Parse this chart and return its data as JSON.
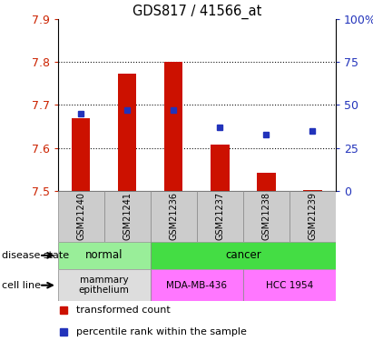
{
  "title": "GDS817 / 41566_at",
  "samples": [
    "GSM21240",
    "GSM21241",
    "GSM21236",
    "GSM21237",
    "GSM21238",
    "GSM21239"
  ],
  "red_values": [
    7.668,
    7.773,
    7.8,
    7.608,
    7.543,
    7.502
  ],
  "blue_percentile": [
    45,
    47,
    47,
    37,
    33,
    35
  ],
  "ymin": 7.5,
  "ymax": 7.9,
  "yticks": [
    7.5,
    7.6,
    7.7,
    7.8,
    7.9
  ],
  "right_yticks": [
    0,
    25,
    50,
    75,
    100
  ],
  "right_ytick_labels": [
    "0",
    "25",
    "50",
    "75",
    "100%"
  ],
  "bar_color": "#cc1100",
  "blue_color": "#2233bb",
  "disease_state_colors": [
    "#99ee99",
    "#44dd44"
  ],
  "cell_line_colors": [
    "#dddddd",
    "#ff77ff",
    "#ff77ff"
  ],
  "tick_row_color": "#cccccc",
  "grid_color": "#111111",
  "left_tick_color": "#cc2200",
  "right_tick_color": "#2233bb",
  "bar_width": 0.4
}
